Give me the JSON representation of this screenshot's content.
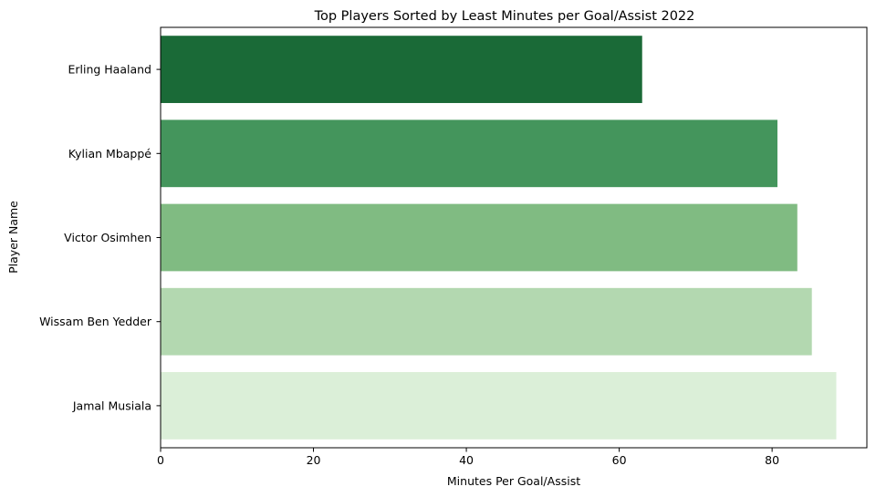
{
  "chart_data": {
    "type": "bar",
    "orientation": "horizontal",
    "title": "Top Players Sorted by Least Minutes per Goal/Assist 2022",
    "xlabel": "Minutes Per Goal/Assist",
    "ylabel": "Player Name",
    "categories": [
      "Erling Haaland",
      "Kylian Mbappé",
      "Victor Osimhen",
      "Wissam Ben Yedder",
      "Jamal Musiala"
    ],
    "values": [
      63.0,
      80.7,
      83.3,
      85.2,
      88.4
    ],
    "colors": [
      "#1a6a37",
      "#44955c",
      "#80bb82",
      "#b3d8b0",
      "#dbefd8"
    ],
    "xlim": [
      0,
      92.4
    ],
    "xticks": [
      0,
      20,
      40,
      60,
      80
    ],
    "xtick_labels": [
      "0",
      "20",
      "40",
      "60",
      "80"
    ],
    "grid": false,
    "legend": null
  }
}
